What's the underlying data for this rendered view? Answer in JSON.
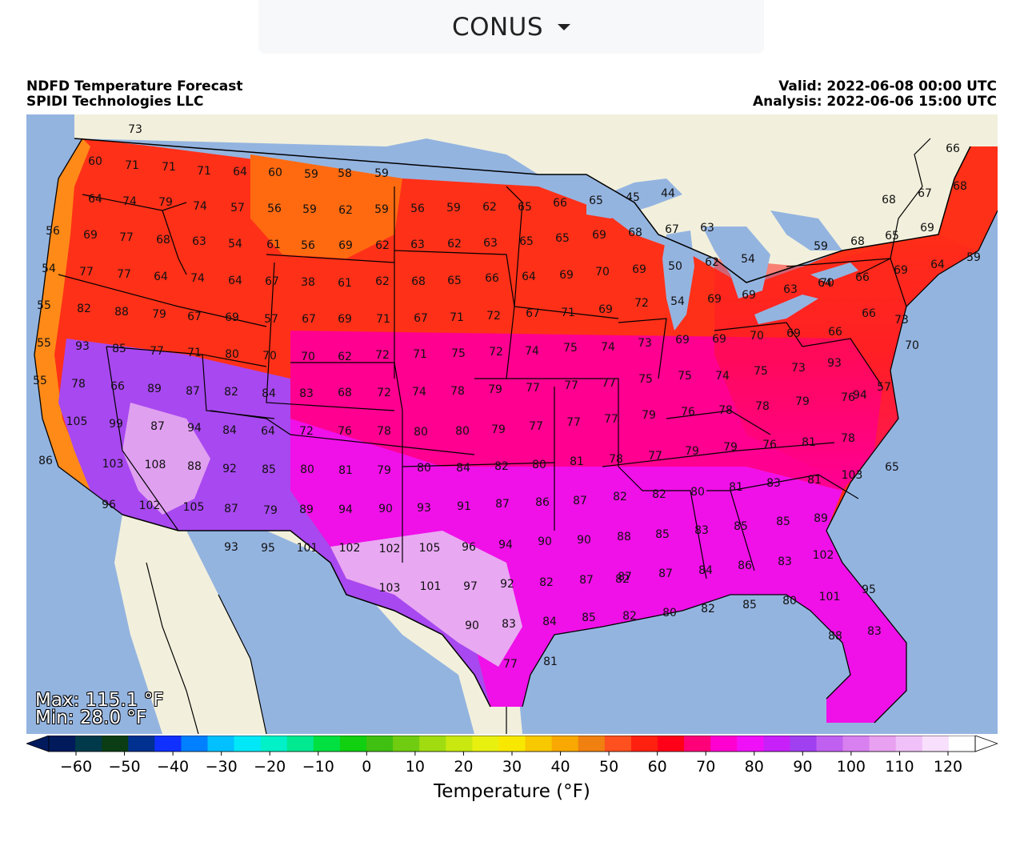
{
  "selector": {
    "label": "CONUS",
    "icon": "caret-down-icon"
  },
  "header": {
    "title": "NDFD Temperature Forecast",
    "org": "SPIDI Technologies LLC",
    "valid": "Valid: 2022-06-08 00:00 UTC",
    "analysis": "Analysis: 2022-06-06 15:00 UTC"
  },
  "stats": {
    "max": "Max: 115.1 °F",
    "min": "Min: 28.0 °F"
  },
  "colorbar": {
    "title": "Temperature (°F)",
    "ticks": [
      "−60",
      "−50",
      "−40",
      "−30",
      "−20",
      "−10",
      "0",
      "10",
      "20",
      "30",
      "40",
      "50",
      "60",
      "70",
      "80",
      "90",
      "100",
      "110",
      "120"
    ],
    "colors": [
      "#001a5c",
      "#003a4a",
      "#0a3d14",
      "#003090",
      "#1030ff",
      "#0080ff",
      "#00c0ff",
      "#00e8f8",
      "#00f0c8",
      "#00e890",
      "#00e040",
      "#10d010",
      "#40c010",
      "#70cc10",
      "#a0dc10",
      "#c8e810",
      "#e8f010",
      "#f8e800",
      "#f8c800",
      "#f8a800",
      "#f08010",
      "#ff5020",
      "#ff2010",
      "#ff0018",
      "#ff0078",
      "#ff00d0",
      "#f010f8",
      "#c820f8",
      "#a040f0",
      "#c060f0",
      "#d880f0",
      "#e8a0f0",
      "#f0c0f8",
      "#f8e0fc",
      "#ffffff"
    ]
  },
  "map": {
    "colors": {
      "ocean": "#94b4e0",
      "land": "#f2f0dc",
      "lake": "#94b4e0"
    },
    "labels": [
      {
        "t": "73"
      },
      {
        "t": "60"
      },
      {
        "t": "71"
      },
      {
        "t": "71"
      },
      {
        "t": "71"
      },
      {
        "t": "64"
      },
      {
        "t": "60"
      },
      {
        "t": "59"
      },
      {
        "t": "58"
      },
      {
        "t": "59"
      },
      {
        "t": "64"
      },
      {
        "t": "74"
      },
      {
        "t": "79"
      },
      {
        "t": "74"
      },
      {
        "t": "57"
      },
      {
        "t": "56"
      },
      {
        "t": "59"
      },
      {
        "t": "62"
      },
      {
        "t": "59"
      },
      {
        "t": "56"
      },
      {
        "t": "59"
      },
      {
        "t": "62"
      },
      {
        "t": "65"
      },
      {
        "t": "66"
      },
      {
        "t": "65"
      },
      {
        "t": "45"
      },
      {
        "t": "44"
      },
      {
        "t": "66"
      },
      {
        "t": "67"
      },
      {
        "t": "68"
      },
      {
        "t": "68"
      },
      {
        "t": "56"
      },
      {
        "t": "69"
      },
      {
        "t": "77"
      },
      {
        "t": "68"
      },
      {
        "t": "63"
      },
      {
        "t": "54"
      },
      {
        "t": "61"
      },
      {
        "t": "56"
      },
      {
        "t": "69"
      },
      {
        "t": "62"
      },
      {
        "t": "63"
      },
      {
        "t": "62"
      },
      {
        "t": "63"
      },
      {
        "t": "65"
      },
      {
        "t": "65"
      },
      {
        "t": "69"
      },
      {
        "t": "68"
      },
      {
        "t": "67"
      },
      {
        "t": "63"
      },
      {
        "t": "59"
      },
      {
        "t": "68"
      },
      {
        "t": "65"
      },
      {
        "t": "69"
      },
      {
        "t": "59"
      },
      {
        "t": "54"
      },
      {
        "t": "77"
      },
      {
        "t": "77"
      },
      {
        "t": "64"
      },
      {
        "t": "74"
      },
      {
        "t": "64"
      },
      {
        "t": "67"
      },
      {
        "t": "38"
      },
      {
        "t": "61"
      },
      {
        "t": "62"
      },
      {
        "t": "68"
      },
      {
        "t": "65"
      },
      {
        "t": "66"
      },
      {
        "t": "64"
      },
      {
        "t": "69"
      },
      {
        "t": "70"
      },
      {
        "t": "69"
      },
      {
        "t": "50"
      },
      {
        "t": "62"
      },
      {
        "t": "54"
      },
      {
        "t": "64"
      },
      {
        "t": "66"
      },
      {
        "t": "69"
      },
      {
        "t": "64"
      },
      {
        "t": "55"
      },
      {
        "t": "82"
      },
      {
        "t": "88"
      },
      {
        "t": "79"
      },
      {
        "t": "67"
      },
      {
        "t": "69"
      },
      {
        "t": "57"
      },
      {
        "t": "67"
      },
      {
        "t": "69"
      },
      {
        "t": "71"
      },
      {
        "t": "67"
      },
      {
        "t": "71"
      },
      {
        "t": "72"
      },
      {
        "t": "67"
      },
      {
        "t": "71"
      },
      {
        "t": "69"
      },
      {
        "t": "72"
      },
      {
        "t": "54"
      },
      {
        "t": "69"
      },
      {
        "t": "69"
      },
      {
        "t": "63"
      },
      {
        "t": "70"
      },
      {
        "t": "66"
      },
      {
        "t": "73"
      },
      {
        "t": "55"
      },
      {
        "t": "93"
      },
      {
        "t": "85"
      },
      {
        "t": "77"
      },
      {
        "t": "71"
      },
      {
        "t": "80"
      },
      {
        "t": "70"
      },
      {
        "t": "70"
      },
      {
        "t": "62"
      },
      {
        "t": "72"
      },
      {
        "t": "71"
      },
      {
        "t": "75"
      },
      {
        "t": "72"
      },
      {
        "t": "74"
      },
      {
        "t": "75"
      },
      {
        "t": "74"
      },
      {
        "t": "73"
      },
      {
        "t": "69"
      },
      {
        "t": "69"
      },
      {
        "t": "70"
      },
      {
        "t": "69"
      },
      {
        "t": "66"
      },
      {
        "t": "70"
      },
      {
        "t": "55"
      },
      {
        "t": "78"
      },
      {
        "t": "66"
      },
      {
        "t": "89"
      },
      {
        "t": "87"
      },
      {
        "t": "82"
      },
      {
        "t": "84"
      },
      {
        "t": "83"
      },
      {
        "t": "68"
      },
      {
        "t": "72"
      },
      {
        "t": "74"
      },
      {
        "t": "78"
      },
      {
        "t": "79"
      },
      {
        "t": "77"
      },
      {
        "t": "77"
      },
      {
        "t": "77"
      },
      {
        "t": "75"
      },
      {
        "t": "75"
      },
      {
        "t": "74"
      },
      {
        "t": "75"
      },
      {
        "t": "73"
      },
      {
        "t": "93"
      },
      {
        "t": "94"
      },
      {
        "t": "105"
      },
      {
        "t": "99"
      },
      {
        "t": "87"
      },
      {
        "t": "94"
      },
      {
        "t": "84"
      },
      {
        "t": "64"
      },
      {
        "t": "72"
      },
      {
        "t": "76"
      },
      {
        "t": "78"
      },
      {
        "t": "80"
      },
      {
        "t": "80"
      },
      {
        "t": "79"
      },
      {
        "t": "77"
      },
      {
        "t": "77"
      },
      {
        "t": "77"
      },
      {
        "t": "79"
      },
      {
        "t": "76"
      },
      {
        "t": "78"
      },
      {
        "t": "78"
      },
      {
        "t": "79"
      },
      {
        "t": "76"
      },
      {
        "t": "57"
      },
      {
        "t": "86"
      },
      {
        "t": "103"
      },
      {
        "t": "108"
      },
      {
        "t": "88"
      },
      {
        "t": "92"
      },
      {
        "t": "85"
      },
      {
        "t": "80"
      },
      {
        "t": "81"
      },
      {
        "t": "79"
      },
      {
        "t": "80"
      },
      {
        "t": "84"
      },
      {
        "t": "82"
      },
      {
        "t": "80"
      },
      {
        "t": "81"
      },
      {
        "t": "78"
      },
      {
        "t": "77"
      },
      {
        "t": "79"
      },
      {
        "t": "79"
      },
      {
        "t": "76"
      },
      {
        "t": "81"
      },
      {
        "t": "78"
      },
      {
        "t": "65"
      },
      {
        "t": "96"
      },
      {
        "t": "102"
      },
      {
        "t": "105"
      },
      {
        "t": "87"
      },
      {
        "t": "79"
      },
      {
        "t": "89"
      },
      {
        "t": "94"
      },
      {
        "t": "90"
      },
      {
        "t": "93"
      },
      {
        "t": "91"
      },
      {
        "t": "87"
      },
      {
        "t": "86"
      },
      {
        "t": "87"
      },
      {
        "t": "82"
      },
      {
        "t": "82"
      },
      {
        "t": "80"
      },
      {
        "t": "81"
      },
      {
        "t": "83"
      },
      {
        "t": "81"
      },
      {
        "t": "103"
      },
      {
        "t": "93"
      },
      {
        "t": "95"
      },
      {
        "t": "101"
      },
      {
        "t": "102"
      },
      {
        "t": "102"
      },
      {
        "t": "105"
      },
      {
        "t": "96"
      },
      {
        "t": "94"
      },
      {
        "t": "90"
      },
      {
        "t": "90"
      },
      {
        "t": "88"
      },
      {
        "t": "85"
      },
      {
        "t": "83"
      },
      {
        "t": "85"
      },
      {
        "t": "85"
      },
      {
        "t": "89"
      },
      {
        "t": "87"
      },
      {
        "t": "87"
      },
      {
        "t": "87"
      },
      {
        "t": "84"
      },
      {
        "t": "86"
      },
      {
        "t": "83"
      },
      {
        "t": "102"
      },
      {
        "t": "103"
      },
      {
        "t": "101"
      },
      {
        "t": "97"
      },
      {
        "t": "92"
      },
      {
        "t": "82"
      },
      {
        "t": "82"
      },
      {
        "t": "82"
      },
      {
        "t": "85"
      },
      {
        "t": "80"
      },
      {
        "t": "101"
      },
      {
        "t": "95"
      },
      {
        "t": "90"
      },
      {
        "t": "83"
      },
      {
        "t": "84"
      },
      {
        "t": "85"
      },
      {
        "t": "82"
      },
      {
        "t": "80"
      },
      {
        "t": "88"
      },
      {
        "t": "83"
      },
      {
        "t": "77"
      },
      {
        "t": "81"
      }
    ]
  }
}
